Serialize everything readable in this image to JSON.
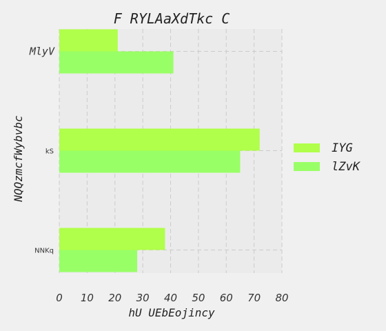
{
  "chart_data": {
    "type": "bar",
    "orientation": "horizontal",
    "title": "F RYLAaXdTkc C",
    "xlabel": "hU UEbEojincy",
    "ylabel": "NQQzmcfWybvbc",
    "categories": [
      "MlyV",
      "kS",
      "NNKq"
    ],
    "series": [
      {
        "name": "IYG",
        "values": [
          21,
          72,
          38
        ],
        "color": "#b0ff4a"
      },
      {
        "name": "lZvK",
        "values": [
          41,
          65,
          28
        ],
        "color": "#99ff66"
      }
    ],
    "xlim": [
      0,
      80
    ],
    "xticks": [
      "0",
      "10",
      "20",
      "30",
      "40",
      "50",
      "60",
      "70",
      "80"
    ],
    "grid": true,
    "legend_position": "right",
    "background_color": "#f0f0f0",
    "plot_background_color": "#ebebeb",
    "grid_color": "#cbcbcb"
  }
}
